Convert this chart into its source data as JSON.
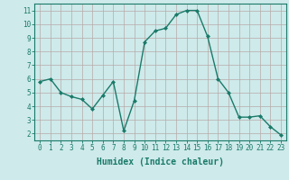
{
  "x": [
    0,
    1,
    2,
    3,
    4,
    5,
    6,
    7,
    8,
    9,
    10,
    11,
    12,
    13,
    14,
    15,
    16,
    17,
    18,
    19,
    20,
    21,
    22,
    23
  ],
  "y": [
    5.8,
    6.0,
    5.0,
    4.7,
    4.5,
    3.8,
    4.8,
    5.8,
    2.2,
    4.4,
    8.7,
    9.5,
    9.7,
    10.7,
    11.0,
    11.0,
    9.1,
    6.0,
    5.0,
    3.2,
    3.2,
    3.3,
    2.5,
    1.9
  ],
  "line_color": "#1a7a6a",
  "marker": "D",
  "markersize": 2.0,
  "linewidth": 1.0,
  "xlabel": "Humidex (Indice chaleur)",
  "xlabel_fontsize": 7,
  "bg_color": "#ceeaea",
  "grid_color": "#b8a8a8",
  "xlim": [
    -0.5,
    23.5
  ],
  "ylim": [
    1.5,
    11.5
  ],
  "yticks": [
    2,
    3,
    4,
    5,
    6,
    7,
    8,
    9,
    10,
    11
  ],
  "xticks": [
    0,
    1,
    2,
    3,
    4,
    5,
    6,
    7,
    8,
    9,
    10,
    11,
    12,
    13,
    14,
    15,
    16,
    17,
    18,
    19,
    20,
    21,
    22,
    23
  ],
  "tick_fontsize": 5.5,
  "axis_color": "#1a7a6a"
}
